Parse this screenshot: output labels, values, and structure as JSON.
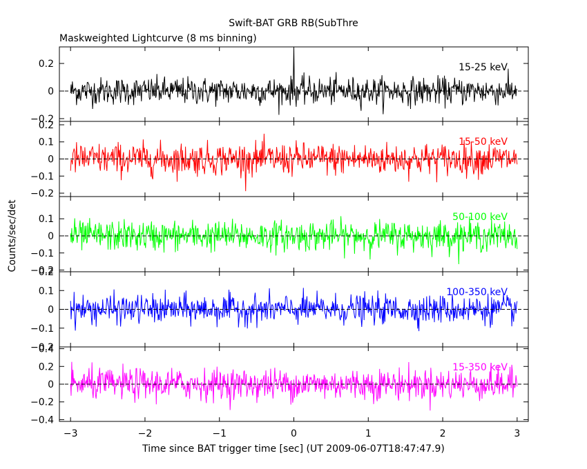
{
  "chart_data": {
    "type": "line",
    "title": "Swift-BAT GRB RB(SubThre",
    "subtitle": "Maskweighted Lightcurve (8 ms binning)",
    "xlabel": "Time since BAT trigger time [sec] (UT 2009-06-07T18:47:47.9)",
    "ylabel": "Counts/sec/det",
    "xlim": [
      -3.15,
      3.15
    ],
    "xticks": [
      -3,
      -2,
      -1,
      0,
      1,
      2,
      3
    ],
    "xtick_labels": [
      "−3",
      "−2",
      "−1",
      "0",
      "1",
      "2",
      "3"
    ],
    "grid": false,
    "panels": [
      {
        "name": "15-25 keV",
        "color": "#000000",
        "ylim": [
          -0.22,
          0.32
        ],
        "yticks": [
          -0.2,
          0,
          0.2
        ],
        "ytick_labels": [
          "−0.2",
          "0",
          "0.2"
        ],
        "noise_amplitude": 0.09,
        "spikes": [
          {
            "x": 0.0,
            "y": 0.32
          }
        ]
      },
      {
        "name": "15-50 keV",
        "color": "#ff0000",
        "ylim": [
          -0.22,
          0.22
        ],
        "yticks": [
          -0.2,
          -0.1,
          0,
          0.1,
          0.2
        ],
        "ytick_labels": [
          "−0.2",
          "−0.1",
          "0",
          "0.1",
          "0.2"
        ],
        "noise_amplitude": 0.085,
        "spikes": []
      },
      {
        "name": "50-100 keV",
        "color": "#00ff00",
        "ylim": [
          -0.21,
          0.23
        ],
        "yticks": [
          -0.2,
          -0.1,
          0,
          0.1
        ],
        "ytick_labels": [
          "−0.2",
          "−0.1",
          "0",
          "0.1"
        ],
        "noise_amplitude": 0.08,
        "spikes": []
      },
      {
        "name": "100-350 keV",
        "color": "#0000ff",
        "ylim": [
          -0.2,
          0.2
        ],
        "yticks": [
          -0.2,
          -0.1,
          0,
          0.1,
          0.2
        ],
        "ytick_labels": [
          "−0.2",
          "−0.1",
          "0",
          "0.1",
          "0.2"
        ],
        "noise_amplitude": 0.07,
        "spikes": []
      },
      {
        "name": "15-350 keV",
        "color": "#ff00ff",
        "ylim": [
          -0.42,
          0.42
        ],
        "yticks": [
          -0.4,
          -0.2,
          0,
          0.2,
          0.4
        ],
        "ytick_labels": [
          "−0.4",
          "−0.2",
          "0",
          "0.2",
          "0.4"
        ],
        "noise_amplitude": 0.16,
        "spikes": []
      }
    ],
    "series_x_range": [
      -3.0,
      3.0
    ],
    "bin_width": 0.008
  }
}
